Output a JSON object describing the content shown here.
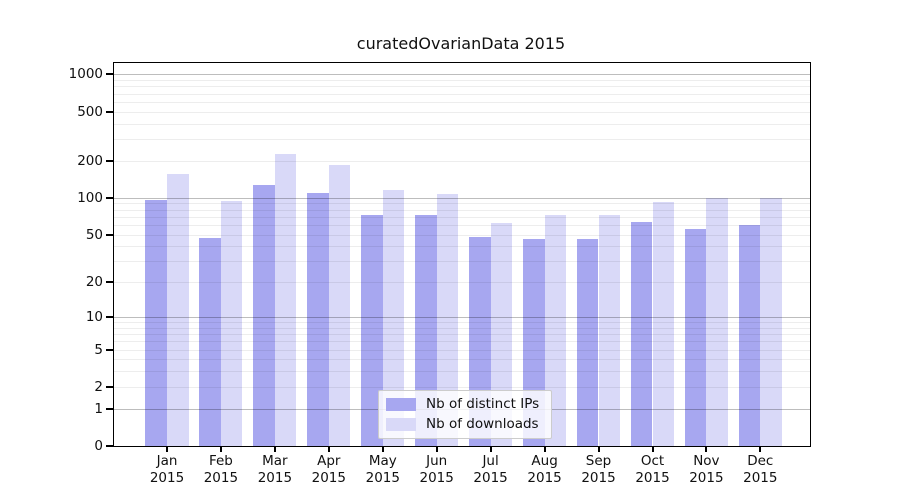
{
  "chart_data": {
    "type": "bar",
    "title": "curatedOvarianData 2015",
    "x_categories": [
      "Jan",
      "Feb",
      "Mar",
      "Apr",
      "May",
      "Jun",
      "Jul",
      "Aug",
      "Sep",
      "Oct",
      "Nov",
      "Dec"
    ],
    "x_year_label": "2015",
    "series": [
      {
        "name": "Nb of distinct IPs",
        "color": "#a7a7f0",
        "values": [
          95,
          47,
          126,
          110,
          72,
          72,
          48,
          46,
          46,
          63,
          56,
          60
        ]
      },
      {
        "name": "Nb of downloads",
        "color": "#d9d9f8",
        "values": [
          155,
          94,
          228,
          185,
          115,
          107,
          62,
          72,
          72,
          92,
          100,
          100
        ]
      }
    ],
    "y_ticks": [
      0,
      1,
      2,
      5,
      10,
      20,
      50,
      100,
      200,
      500,
      1000
    ],
    "y_scale": "log1p",
    "ylim": [
      0,
      1000
    ],
    "grid": "horizontal major+minor, drawn over bars",
    "legend_position": "inside-bottom-center",
    "colors": {
      "background": "#ffffff",
      "frame": "#000000",
      "grid_major": "#bdbdbd",
      "grid_minor": "#ececec",
      "text": "#111111"
    }
  }
}
